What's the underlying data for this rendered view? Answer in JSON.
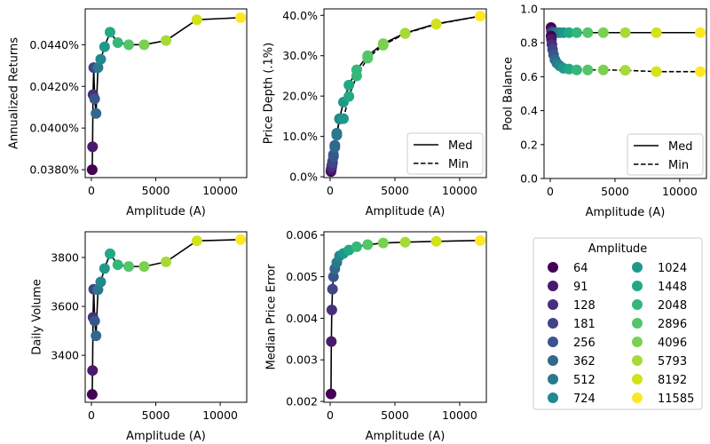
{
  "chart_data": [
    {
      "type": "line",
      "title": "",
      "xlabel": "Amplitude (A)",
      "ylabel": "Annualized Returns",
      "xlim": [
        -480,
        12060
      ],
      "ylim": [
        0.03762,
        0.04572
      ],
      "xticks": [
        0,
        5000,
        10000
      ],
      "xtick_labels": [
        "0",
        "5000",
        "10000"
      ],
      "yticks": [
        0.038,
        0.04,
        0.042,
        0.044
      ],
      "ytick_labels": [
        "0.0380%",
        "0.0400%",
        "0.0420%",
        "0.0440%"
      ],
      "x": [
        64,
        91,
        128,
        181,
        256,
        362,
        512,
        724,
        1024,
        1448,
        2048,
        2896,
        4096,
        5793,
        8192,
        11585
      ],
      "series": [
        {
          "name": "Annualized Returns",
          "style": "solid",
          "values": [
            0.038,
            0.0391,
            0.0416,
            0.0429,
            0.0414,
            0.0407,
            0.0429,
            0.0433,
            0.0439,
            0.0446,
            0.0441,
            0.044,
            0.044,
            0.0442,
            0.0452,
            0.0453
          ]
        }
      ],
      "legend": null
    },
    {
      "type": "line",
      "title": "",
      "xlabel": "Amplitude (A)",
      "ylabel": "Price Depth (.1%)",
      "xlim": [
        -480,
        12060
      ],
      "ylim": [
        -0.2,
        41.6
      ],
      "xticks": [
        0,
        5000,
        10000
      ],
      "xtick_labels": [
        "0",
        "5000",
        "10000"
      ],
      "yticks": [
        0,
        10,
        20,
        30,
        40
      ],
      "ytick_labels": [
        "0.0%",
        "10.0%",
        "20.0%",
        "30.0%",
        "40.0%"
      ],
      "x": [
        64,
        91,
        128,
        181,
        256,
        362,
        512,
        724,
        1024,
        1448,
        2048,
        2896,
        4096,
        5793,
        8192,
        11585
      ],
      "series": [
        {
          "name": "Med",
          "style": "solid",
          "values": [
            1.5,
            2.0,
            2.8,
            3.8,
            5.5,
            7.8,
            10.8,
            14.4,
            18.5,
            22.7,
            26.5,
            30.0,
            33.0,
            35.6,
            37.9,
            39.8
          ]
        },
        {
          "name": "Min",
          "style": "dashed",
          "values": [
            1.3,
            1.8,
            2.5,
            3.4,
            5.0,
            7.3,
            10.3,
            14.3,
            14.4,
            19.9,
            25.0,
            29.4,
            32.6,
            35.5,
            37.8,
            39.8
          ]
        }
      ],
      "legend": {
        "entries": [
          "Med",
          "Min"
        ],
        "placement": "lower-right"
      }
    },
    {
      "type": "line",
      "title": "",
      "xlabel": "Amplitude (A)",
      "ylabel": "Pool Balance",
      "xlim": [
        -480,
        12060
      ],
      "ylim": [
        0.0,
        1.0
      ],
      "xticks": [
        0,
        5000,
        10000
      ],
      "xtick_labels": [
        "0",
        "5000",
        "10000"
      ],
      "yticks": [
        0.0,
        0.2,
        0.4,
        0.6,
        0.8,
        1.0
      ],
      "ytick_labels": [
        "0.0",
        "0.2",
        "0.4",
        "0.6",
        "0.8",
        "1.0"
      ],
      "x": [
        64,
        91,
        128,
        181,
        256,
        362,
        512,
        724,
        1024,
        1448,
        2048,
        2896,
        4096,
        5793,
        8192,
        11585
      ],
      "series": [
        {
          "name": "Med",
          "style": "solid",
          "values": [
            0.89,
            0.87,
            0.865,
            0.862,
            0.86,
            0.86,
            0.86,
            0.86,
            0.86,
            0.86,
            0.86,
            0.86,
            0.86,
            0.86,
            0.86,
            0.86
          ]
        },
        {
          "name": "Min",
          "style": "dashed",
          "values": [
            0.84,
            0.82,
            0.79,
            0.76,
            0.73,
            0.7,
            0.68,
            0.665,
            0.65,
            0.645,
            0.64,
            0.64,
            0.64,
            0.638,
            0.63,
            0.63
          ]
        }
      ],
      "legend": {
        "entries": [
          "Med",
          "Min"
        ],
        "placement": "lower-right"
      }
    },
    {
      "type": "line",
      "title": "",
      "xlabel": "Amplitude (A)",
      "ylabel": "Daily Volume",
      "xlim": [
        -480,
        12060
      ],
      "ylim": [
        3208,
        3905
      ],
      "xticks": [
        0,
        5000,
        10000
      ],
      "xtick_labels": [
        "0",
        "5000",
        "10000"
      ],
      "yticks": [
        3400,
        3600,
        3800
      ],
      "ytick_labels": [
        "3400",
        "3600",
        "3800"
      ],
      "x": [
        64,
        91,
        128,
        181,
        256,
        362,
        512,
        724,
        1024,
        1448,
        2048,
        2896,
        4096,
        5793,
        8192,
        11585
      ],
      "series": [
        {
          "name": "Daily Volume",
          "style": "solid",
          "values": [
            3240,
            3338,
            3555,
            3670,
            3540,
            3480,
            3668,
            3700,
            3755,
            3815,
            3770,
            3763,
            3763,
            3782,
            3868,
            3873
          ]
        }
      ],
      "legend": null
    },
    {
      "type": "line",
      "title": "",
      "xlabel": "Amplitude (A)",
      "ylabel": "Median Price Error",
      "xlim": [
        -480,
        12060
      ],
      "ylim": [
        0.00198,
        0.00608
      ],
      "xticks": [
        0,
        5000,
        10000
      ],
      "xtick_labels": [
        "0",
        "5000",
        "10000"
      ],
      "yticks": [
        0.002,
        0.003,
        0.004,
        0.005,
        0.006
      ],
      "ytick_labels": [
        "0.002",
        "0.003",
        "0.004",
        "0.005",
        "0.006"
      ],
      "x": [
        64,
        91,
        128,
        181,
        256,
        362,
        512,
        724,
        1024,
        1448,
        2048,
        2896,
        4096,
        5793,
        8192,
        11585
      ],
      "series": [
        {
          "name": "Median Price Error",
          "style": "solid",
          "values": [
            0.00218,
            0.00344,
            0.0042,
            0.0047,
            0.005,
            0.00519,
            0.00534,
            0.0055,
            0.00556,
            0.00564,
            0.00572,
            0.00577,
            0.00581,
            0.00583,
            0.00585,
            0.00587
          ]
        }
      ],
      "legend": null
    }
  ],
  "amplitude_legend": {
    "title": "Amplitude",
    "entries": [
      {
        "label": "64",
        "color": "#440154"
      },
      {
        "label": "91",
        "color": "#481a6c"
      },
      {
        "label": "128",
        "color": "#472f7d"
      },
      {
        "label": "181",
        "color": "#414487"
      },
      {
        "label": "256",
        "color": "#39568c"
      },
      {
        "label": "362",
        "color": "#31688e"
      },
      {
        "label": "512",
        "color": "#2a788e"
      },
      {
        "label": "724",
        "color": "#23888e"
      },
      {
        "label": "1024",
        "color": "#1f988b"
      },
      {
        "label": "1448",
        "color": "#22a884"
      },
      {
        "label": "2048",
        "color": "#35b779"
      },
      {
        "label": "2896",
        "color": "#54c568"
      },
      {
        "label": "4096",
        "color": "#7ad151"
      },
      {
        "label": "5793",
        "color": "#a5db36"
      },
      {
        "label": "8192",
        "color": "#d2e21b"
      },
      {
        "label": "11585",
        "color": "#fde725"
      }
    ]
  }
}
